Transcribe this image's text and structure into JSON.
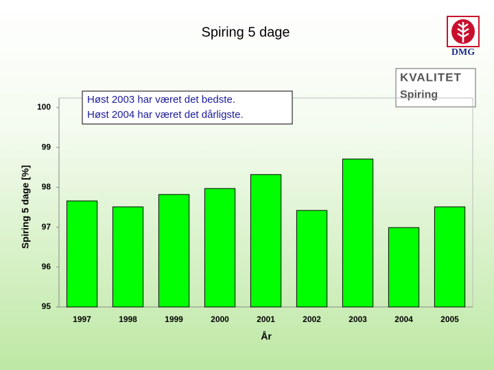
{
  "chart_data": {
    "type": "bar",
    "title": "Spiring 5 dage",
    "categories": [
      "1997",
      "1998",
      "1999",
      "2000",
      "2001",
      "2002",
      "2003",
      "2004",
      "2005"
    ],
    "values": [
      97.66,
      97.51,
      97.82,
      97.97,
      98.32,
      97.42,
      98.71,
      96.99,
      97.51
    ],
    "color": "#00ff00",
    "ylim": [
      95,
      100
    ],
    "yticks": [
      95,
      96,
      97,
      98,
      99,
      100
    ],
    "y_label": "Spiring 5 dage [%]",
    "x_label": "År",
    "annotations": [
      "Høst 2003 har været det bedste.",
      "Høst 2004 har været det dårligste."
    ],
    "grid": false
  },
  "badge": {
    "title": "KVALITET",
    "subtitle": "Spiring"
  },
  "logo": {
    "text": "DMG"
  }
}
